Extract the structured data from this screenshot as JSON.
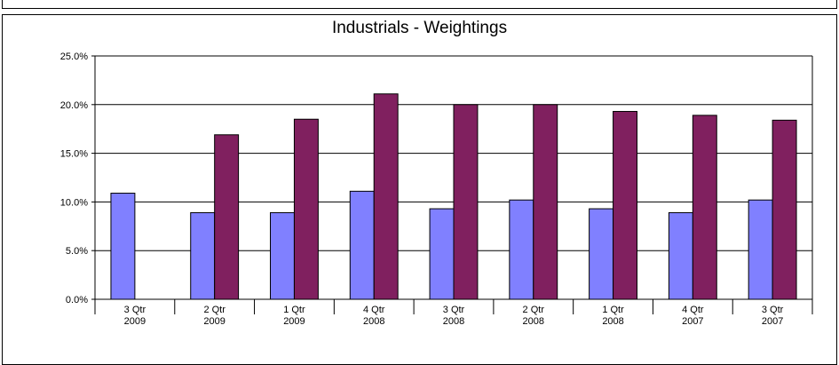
{
  "chart_data": {
    "type": "bar",
    "title": "Industrials  -  Weightings",
    "categories": [
      [
        "3 Qtr",
        "2009"
      ],
      [
        "2 Qtr",
        "2009"
      ],
      [
        "1 Qtr",
        "2009"
      ],
      [
        "4 Qtr",
        "2008"
      ],
      [
        "3 Qtr",
        "2008"
      ],
      [
        "2 Qtr",
        "2008"
      ],
      [
        "1 Qtr",
        "2008"
      ],
      [
        "4 Qtr",
        "2007"
      ],
      [
        "3 Qtr",
        "2007"
      ]
    ],
    "series": [
      {
        "color": "#8080ff",
        "values": [
          10.9,
          8.9,
          8.9,
          11.1,
          9.3,
          10.2,
          9.3,
          8.9,
          10.2
        ]
      },
      {
        "color": "#80205f",
        "values": [
          null,
          16.9,
          18.5,
          21.1,
          20.0,
          20.0,
          19.3,
          18.9,
          18.4
        ]
      }
    ],
    "ylim": [
      0,
      25
    ],
    "yticks": [
      "0.0%",
      "5.0%",
      "10.0%",
      "15.0%",
      "20.0%",
      "25.0%"
    ],
    "ytick_values": [
      0,
      5,
      10,
      15,
      20,
      25
    ],
    "grid": true,
    "legend": "none",
    "xlabel": "",
    "ylabel": ""
  }
}
